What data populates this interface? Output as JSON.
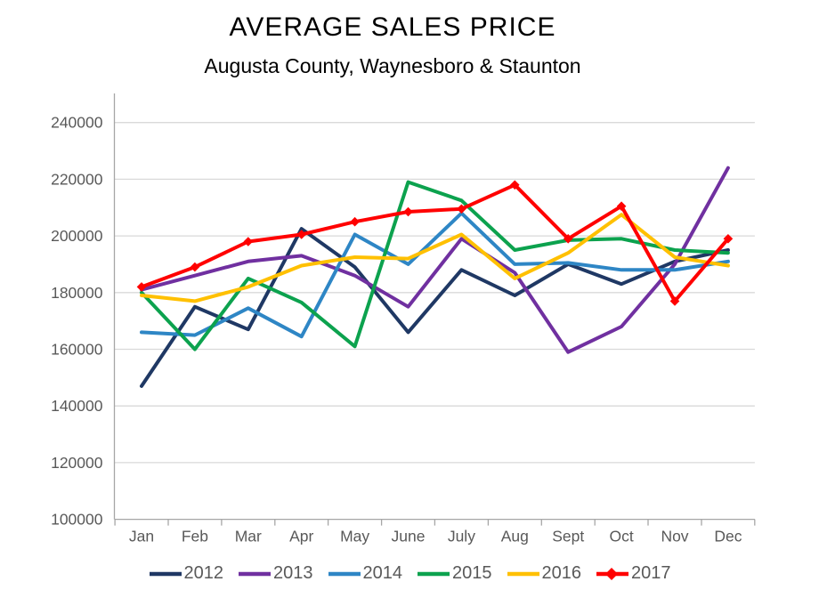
{
  "title": "AVERAGE SALES PRICE",
  "subtitle": "Augusta County, Waynesboro & Staunton",
  "colors": {
    "grid_line": "#D9D9D9",
    "axis_line": "#A6A6A6",
    "tick_label": "#595959",
    "title_text": "#000000",
    "legend_text": "#595959"
  },
  "chart_data": {
    "type": "line",
    "title": "AVERAGE SALES PRICE",
    "subtitle": "Augusta County, Waynesboro & Staunton",
    "xlabel": "",
    "ylabel": "",
    "grid": true,
    "legend_position": "bottom",
    "categories": [
      "Jan",
      "Feb",
      "Mar",
      "Apr",
      "May",
      "June",
      "July",
      "Aug",
      "Sept",
      "Oct",
      "Nov",
      "Dec"
    ],
    "y_axis": {
      "min": 100000,
      "max": 240000,
      "step": 20000,
      "tick_labels": [
        "100000",
        "120000",
        "140000",
        "160000",
        "180000",
        "200000",
        "220000",
        "240000"
      ]
    },
    "series": [
      {
        "name": "2012",
        "color": "#1F3864",
        "marker": "none",
        "values": [
          147000,
          175000,
          167000,
          202500,
          189000,
          166000,
          188000,
          179000,
          190000,
          183000,
          191000,
          195000
        ]
      },
      {
        "name": "2013",
        "color": "#7030A0",
        "marker": "none",
        "values": [
          181000,
          186000,
          191000,
          193000,
          186000,
          175000,
          199000,
          187000,
          159000,
          168000,
          190000,
          224000
        ]
      },
      {
        "name": "2014",
        "color": "#2E86C5",
        "marker": "none",
        "values": [
          166000,
          165000,
          174500,
          164500,
          200500,
          190000,
          208000,
          190000,
          190500,
          188000,
          188000,
          191000
        ]
      },
      {
        "name": "2015",
        "color": "#0CA24E",
        "marker": "none",
        "values": [
          180000,
          160000,
          185000,
          176500,
          161000,
          219000,
          212500,
          195000,
          198500,
          199000,
          195000,
          194000
        ]
      },
      {
        "name": "2016",
        "color": "#FFC000",
        "marker": "none",
        "values": [
          179000,
          177000,
          182000,
          189500,
          192500,
          192000,
          200500,
          185000,
          194000,
          207500,
          192500,
          189500
        ]
      },
      {
        "name": "2017",
        "color": "#FF0000",
        "marker": "diamond",
        "values": [
          182000,
          189000,
          198000,
          200500,
          205000,
          208500,
          209500,
          218000,
          199000,
          210500,
          177000,
          199000
        ]
      }
    ]
  }
}
